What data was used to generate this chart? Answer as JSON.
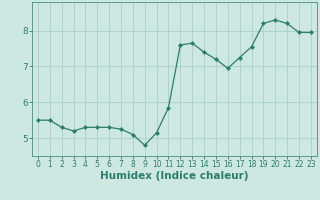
{
  "x": [
    0,
    1,
    2,
    3,
    4,
    5,
    6,
    7,
    8,
    9,
    10,
    11,
    12,
    13,
    14,
    15,
    16,
    17,
    18,
    19,
    20,
    21,
    22,
    23
  ],
  "y": [
    5.5,
    5.5,
    5.3,
    5.2,
    5.3,
    5.3,
    5.3,
    5.25,
    5.1,
    4.8,
    5.15,
    5.85,
    7.6,
    7.65,
    7.4,
    7.2,
    6.95,
    7.25,
    7.55,
    8.2,
    8.3,
    8.2,
    7.95,
    7.95
  ],
  "line_color": "#2d7d6e",
  "marker": "D",
  "marker_size": 2.0,
  "bg_color": "#cce8e0",
  "grid_color": "#aacec6",
  "xlabel": "Humidex (Indice chaleur)",
  "ylim": [
    4.5,
    8.8
  ],
  "xlim": [
    -0.5,
    23.5
  ],
  "yticks": [
    5,
    6,
    7,
    8
  ],
  "xticks": [
    0,
    1,
    2,
    3,
    4,
    5,
    6,
    7,
    8,
    9,
    10,
    11,
    12,
    13,
    14,
    15,
    16,
    17,
    18,
    19,
    20,
    21,
    22,
    23
  ],
  "tick_color": "#2d7d6e",
  "label_color": "#2d7d6e",
  "font_size_xlabel": 7.5,
  "font_size_ticks": 5.5,
  "spine_color": "#5a9a8a"
}
